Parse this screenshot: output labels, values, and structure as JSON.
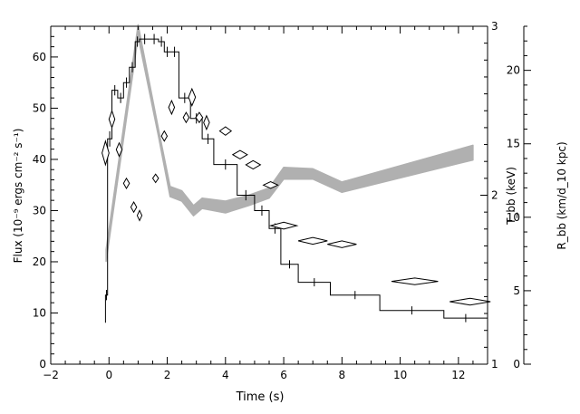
{
  "chart_data": {
    "type": "line",
    "xlabel": "Time (s)",
    "ylabel_left": "Flux (10⁻⁹ ergs cm⁻² s⁻¹)",
    "ylabel_right_inner": "T_bb (keV)",
    "ylabel_right_outer": "R_bb (km/d_10 kpc)",
    "xlim": [
      -2,
      13
    ],
    "ylim_left": [
      0,
      66
    ],
    "ylim_right_inner": [
      1,
      3
    ],
    "ylim_right_outer": [
      0,
      23
    ],
    "x_ticks": [
      -2,
      0,
      2,
      4,
      6,
      8,
      10,
      12
    ],
    "y_left_ticks": [
      0,
      10,
      20,
      30,
      40,
      50,
      60
    ],
    "y_right_inner_ticks": [
      1,
      2,
      3
    ],
    "y_right_outer_ticks": [
      0,
      5,
      10,
      15,
      20
    ],
    "flux_step": {
      "name": "",
      "bins": [
        {
          "x0": -0.12,
          "x1": -0.05,
          "y": 13.5,
          "err": 1.0
        },
        {
          "x0": -0.05,
          "x1": 0.1,
          "y": 44,
          "err": 1.5
        },
        {
          "x0": 0.1,
          "x1": 0.3,
          "y": 53.5,
          "err": 1.0
        },
        {
          "x0": 0.3,
          "x1": 0.5,
          "y": 52,
          "err": 1.0
        },
        {
          "x0": 0.5,
          "x1": 0.7,
          "y": 55,
          "err": 1.0
        },
        {
          "x0": 0.7,
          "x1": 0.9,
          "y": 58,
          "err": 1.0
        },
        {
          "x0": 0.9,
          "x1": 1.05,
          "y": 63,
          "err": 1.0
        },
        {
          "x0": 1.05,
          "x1": 1.4,
          "y": 63.5,
          "err": 1.0
        },
        {
          "x0": 1.4,
          "x1": 1.7,
          "y": 63.5,
          "err": 1.0
        },
        {
          "x0": 1.7,
          "x1": 1.9,
          "y": 63,
          "err": 1.0
        },
        {
          "x0": 1.9,
          "x1": 2.1,
          "y": 61,
          "err": 1.0
        },
        {
          "x0": 2.1,
          "x1": 2.4,
          "y": 61,
          "err": 1.0
        },
        {
          "x0": 2.4,
          "x1": 2.8,
          "y": 52,
          "err": 1.0
        },
        {
          "x0": 2.8,
          "x1": 3.2,
          "y": 48,
          "err": 1.0
        },
        {
          "x0": 3.2,
          "x1": 3.6,
          "y": 44,
          "err": 1.0
        },
        {
          "x0": 3.6,
          "x1": 4.4,
          "y": 39,
          "err": 1.0
        },
        {
          "x0": 4.4,
          "x1": 5.0,
          "y": 33,
          "err": 1.0
        },
        {
          "x0": 5.0,
          "x1": 5.5,
          "y": 30,
          "err": 1.0
        },
        {
          "x0": 5.5,
          "x1": 5.9,
          "y": 26.5,
          "err": 1.0
        },
        {
          "x0": 5.9,
          "x1": 6.5,
          "y": 19.5,
          "err": 0.8
        },
        {
          "x0": 6.5,
          "x1": 7.6,
          "y": 16,
          "err": 0.8
        },
        {
          "x0": 7.6,
          "x1": 9.3,
          "y": 13.5,
          "err": 0.8
        },
        {
          "x0": 9.3,
          "x1": 11.5,
          "y": 10.5,
          "err": 0.8
        },
        {
          "x0": 11.5,
          "x1": 13.0,
          "y": 9,
          "err": 0.8
        }
      ]
    },
    "radius_band": {
      "name": "",
      "points": [
        {
          "x": -0.1,
          "lo": 7.0,
          "hi": 7.8
        },
        {
          "x": 1.0,
          "lo": 22.3,
          "hi": 23.1
        },
        {
          "x": 1.7,
          "lo": 15.5,
          "hi": 16.0
        },
        {
          "x": 2.1,
          "lo": 11.4,
          "hi": 12.1
        },
        {
          "x": 2.5,
          "lo": 11.1,
          "hi": 11.8
        },
        {
          "x": 2.9,
          "lo": 10.1,
          "hi": 10.8
        },
        {
          "x": 3.2,
          "lo": 10.6,
          "hi": 11.3
        },
        {
          "x": 4.0,
          "lo": 10.3,
          "hi": 11.1
        },
        {
          "x": 4.8,
          "lo": 10.8,
          "hi": 11.5
        },
        {
          "x": 5.5,
          "lo": 11.3,
          "hi": 12.0
        },
        {
          "x": 6.0,
          "lo": 12.6,
          "hi": 13.4
        },
        {
          "x": 7.0,
          "lo": 12.6,
          "hi": 13.3
        },
        {
          "x": 8.0,
          "lo": 11.7,
          "hi": 12.4
        },
        {
          "x": 12.5,
          "lo": 13.9,
          "hi": 14.9
        }
      ]
    },
    "temperature_points": {
      "name": "",
      "points": [
        {
          "x": -0.12,
          "y": 2.25,
          "xerr": 0.12,
          "yerr": 0.07
        },
        {
          "x": 0.1,
          "y": 2.45,
          "xerr": 0.1,
          "yerr": 0.05
        },
        {
          "x": 0.35,
          "y": 2.27,
          "xerr": 0.1,
          "yerr": 0.04
        },
        {
          "x": 0.6,
          "y": 2.07,
          "xerr": 0.1,
          "yerr": 0.03
        },
        {
          "x": 0.85,
          "y": 1.93,
          "xerr": 0.1,
          "yerr": 0.03
        },
        {
          "x": 1.05,
          "y": 1.88,
          "xerr": 0.08,
          "yerr": 0.03
        },
        {
          "x": 1.6,
          "y": 2.1,
          "xerr": 0.1,
          "yerr": 0.025
        },
        {
          "x": 1.9,
          "y": 2.35,
          "xerr": 0.1,
          "yerr": 0.03
        },
        {
          "x": 2.15,
          "y": 2.52,
          "xerr": 0.1,
          "yerr": 0.04
        },
        {
          "x": 2.65,
          "y": 2.46,
          "xerr": 0.1,
          "yerr": 0.03
        },
        {
          "x": 2.85,
          "y": 2.58,
          "xerr": 0.12,
          "yerr": 0.05
        },
        {
          "x": 3.1,
          "y": 2.46,
          "xerr": 0.12,
          "yerr": 0.03
        },
        {
          "x": 3.35,
          "y": 2.43,
          "xerr": 0.1,
          "yerr": 0.04
        },
        {
          "x": 4.0,
          "y": 2.38,
          "xerr": 0.2,
          "yerr": 0.025
        },
        {
          "x": 4.5,
          "y": 2.24,
          "xerr": 0.25,
          "yerr": 0.025
        },
        {
          "x": 4.95,
          "y": 2.18,
          "xerr": 0.25,
          "yerr": 0.025
        },
        {
          "x": 5.55,
          "y": 2.06,
          "xerr": 0.25,
          "yerr": 0.02
        },
        {
          "x": 6.0,
          "y": 1.82,
          "xerr": 0.45,
          "yerr": 0.02
        },
        {
          "x": 7.0,
          "y": 1.73,
          "xerr": 0.5,
          "yerr": 0.02
        },
        {
          "x": 8.0,
          "y": 1.71,
          "xerr": 0.5,
          "yerr": 0.02
        },
        {
          "x": 10.5,
          "y": 1.49,
          "xerr": 0.8,
          "yerr": 0.02
        },
        {
          "x": 12.4,
          "y": 1.37,
          "xerr": 0.7,
          "yerr": 0.02
        }
      ]
    },
    "colors": {
      "axis": "#000000",
      "flux": "#000000",
      "radius_band": "#b0b0b0",
      "temperature": "#000000"
    },
    "grid": false,
    "legend": "none"
  }
}
